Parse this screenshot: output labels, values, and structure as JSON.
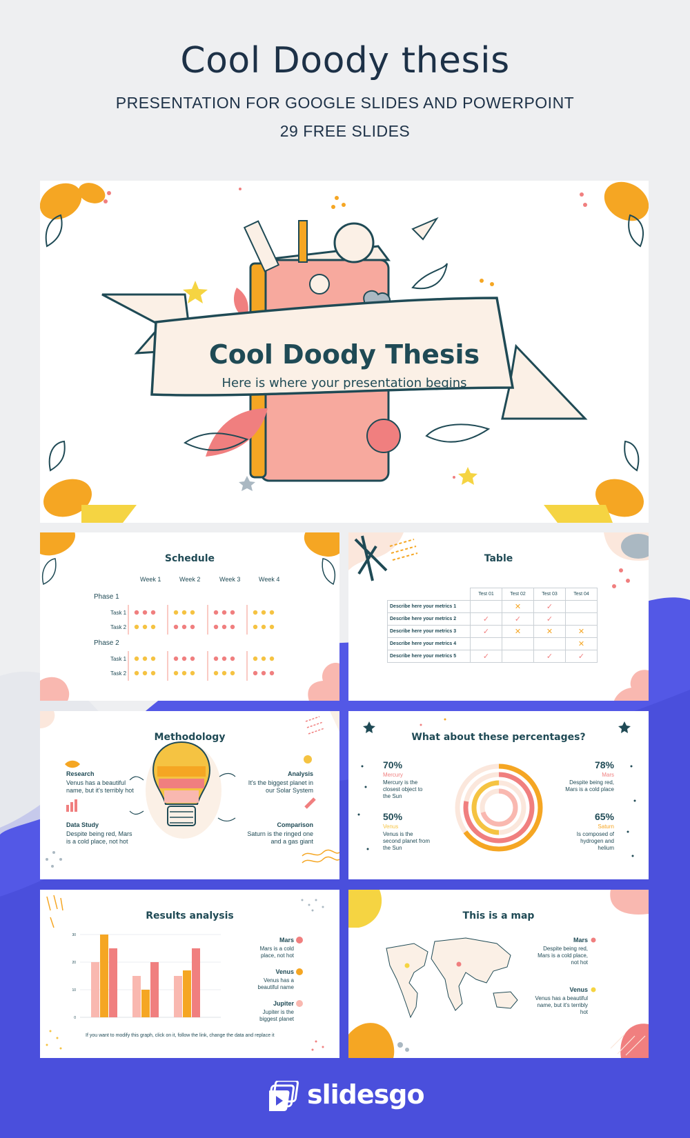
{
  "header": {
    "title": "Cool Doody thesis",
    "subtitle": "PRESENTATION FOR GOOGLE SLIDES AND POWERPOINT",
    "slide_count": "29 FREE SLIDES"
  },
  "cover": {
    "title": "Cool Doody Thesis",
    "subtitle": "Here is where your presentation begins"
  },
  "schedule": {
    "title": "Schedule",
    "weeks": [
      "Week 1",
      "Week 2",
      "Week 3",
      "Week 4"
    ],
    "phases": [
      {
        "label": "Phase 1",
        "tasks": [
          "Task 1",
          "Task 2"
        ]
      },
      {
        "label": "Phase 2",
        "tasks": [
          "Task 1",
          "Task 2"
        ]
      }
    ]
  },
  "table": {
    "title": "Table",
    "columns": [
      "Test 01",
      "Test 02",
      "Test 03",
      "Test 04"
    ],
    "rows": [
      {
        "label": "Describe here your metrics 1",
        "cells": [
          "",
          "x",
          "check",
          ""
        ]
      },
      {
        "label": "Describe here your metrics 2",
        "cells": [
          "check",
          "check",
          "check",
          ""
        ]
      },
      {
        "label": "Describe here your metrics 3",
        "cells": [
          "check",
          "x",
          "x",
          "x"
        ]
      },
      {
        "label": "Describe here your metrics 4",
        "cells": [
          "",
          "",
          "",
          "x"
        ]
      },
      {
        "label": "Describe here your metrics 5",
        "cells": [
          "check",
          "",
          "check",
          "check"
        ]
      }
    ]
  },
  "methodology": {
    "title": "Methodology",
    "items": [
      {
        "title": "Research",
        "text": "Venus has a beautiful name, but it's terribly hot"
      },
      {
        "title": "Analysis",
        "text": "It's the biggest planet in our Solar System"
      },
      {
        "title": "Data Study",
        "text": "Despite being red, Mars is a cold place, not hot"
      },
      {
        "title": "Comparison",
        "text": "Saturn is the ringed one and a gas giant"
      }
    ]
  },
  "percentages": {
    "title": "What about these percentages?",
    "items": [
      {
        "value": "70%",
        "name": "Mercury",
        "text": "Mercury is the closest object to the Sun",
        "color": "#f07f7f"
      },
      {
        "value": "78%",
        "name": "Mars",
        "text": "Despite being red, Mars is a cold place",
        "color": "#f07f7f"
      },
      {
        "value": "50%",
        "name": "Venus",
        "text": "Venus is the second planet from the Sun",
        "color": "#f5c342"
      },
      {
        "value": "65%",
        "name": "Saturn",
        "text": "Is composed of hydrogen and helium",
        "color": "#f5a623"
      }
    ]
  },
  "results": {
    "title": "Results analysis",
    "note": "If you want to modify this graph, click on it, follow the link, change the data and replace it",
    "legend": [
      {
        "name": "Mars",
        "text": "Mars is a cold place, not hot",
        "color": "#f07f7f"
      },
      {
        "name": "Venus",
        "text": "Venus has a beautiful name",
        "color": "#f5a623"
      },
      {
        "name": "Jupiter",
        "text": "Jupiter is the biggest planet",
        "color": "#f9b8b0"
      }
    ]
  },
  "chart_data": {
    "type": "bar",
    "categories": [
      "",
      "",
      ""
    ],
    "series": [
      {
        "name": "Jupiter",
        "color": "#f9b8b0",
        "values": [
          20,
          15,
          15
        ]
      },
      {
        "name": "Venus",
        "color": "#f5a623",
        "values": [
          30,
          10,
          17
        ]
      },
      {
        "name": "Mars",
        "color": "#f07f7f",
        "values": [
          25,
          20,
          25
        ]
      }
    ],
    "yticks": [
      "0",
      "10",
      "20",
      "30"
    ],
    "ylim": [
      0,
      30
    ]
  },
  "map": {
    "title": "This is a map",
    "items": [
      {
        "name": "Mars",
        "text": "Despite being red, Mars is a cold place, not hot",
        "color": "#f07f7f"
      },
      {
        "name": "Venus",
        "text": "Venus has a beautiful name, but it's terribly hot",
        "color": "#f5d442"
      }
    ]
  },
  "brand": {
    "name": "slidesgo"
  }
}
